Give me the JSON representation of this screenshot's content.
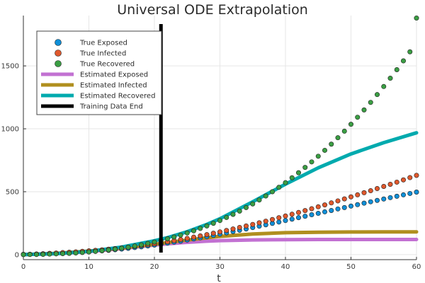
{
  "chart_data": {
    "type": "scatter",
    "title": "Universal ODE Extrapolation",
    "xlabel": "t",
    "ylabel": "",
    "xlim": [
      0,
      60
    ],
    "ylim": [
      -40,
      1900
    ],
    "xticks": [
      0,
      10,
      20,
      30,
      40,
      50,
      60
    ],
    "yticks": [
      0,
      500,
      1000,
      1500
    ],
    "grid": true,
    "legend_position": "top-left",
    "colors": {
      "true_exposed": "#0f8fd8",
      "true_infected": "#e0582c",
      "true_recovered": "#3a9e43",
      "est_exposed": "#c271d2",
      "est_infected": "#b08f1f",
      "est_recovered": "#00aaae",
      "training_end": "#000000"
    },
    "training_data_end": 21,
    "scatter_x_start": 0,
    "scatter_x_end": 60,
    "scatter_x_step": 1,
    "series": [
      {
        "name": "True Exposed",
        "kind": "scatter",
        "color_key": "true_exposed",
        "values": [
          1,
          2,
          3,
          5,
          7,
          9,
          11,
          13,
          16,
          19,
          22,
          26,
          30,
          34,
          39,
          44,
          50,
          56,
          62,
          69,
          76,
          83,
          91,
          99,
          107,
          116,
          125,
          134,
          143,
          153,
          163,
          173,
          183,
          194,
          204,
          215,
          226,
          237,
          248,
          259,
          271,
          282,
          294,
          305,
          317,
          328,
          340,
          351,
          363,
          374,
          386,
          397,
          409,
          420,
          431,
          442,
          453,
          464,
          475,
          486,
          497
        ]
      },
      {
        "name": "True Infected",
        "kind": "scatter",
        "color_key": "true_infected",
        "values": [
          2,
          3,
          5,
          7,
          10,
          13,
          16,
          19,
          22,
          26,
          30,
          34,
          38,
          43,
          48,
          53,
          59,
          65,
          72,
          79,
          86,
          94,
          102,
          111,
          120,
          129,
          139,
          149,
          159,
          170,
          181,
          192,
          204,
          216,
          228,
          240,
          253,
          266,
          279,
          293,
          307,
          321,
          335,
          350,
          365,
          380,
          395,
          411,
          427,
          443,
          459,
          475,
          492,
          508,
          525,
          542,
          559,
          576,
          594,
          612,
          630
        ]
      },
      {
        "name": "True Recovered",
        "kind": "scatter",
        "color_key": "true_recovered",
        "values": [
          0,
          1,
          1,
          2,
          4,
          6,
          8,
          10,
          13,
          17,
          21,
          26,
          31,
          37,
          44,
          51,
          59,
          68,
          78,
          89,
          100,
          113,
          126,
          140,
          155,
          172,
          189,
          208,
          228,
          249,
          271,
          295,
          320,
          346,
          374,
          403,
          434,
          466,
          500,
          535,
          572,
          611,
          651,
          693,
          737,
          782,
          829,
          878,
          929,
          981,
          1036,
          1092,
          1150,
          1210,
          1272,
          1336,
          1402,
          1470,
          1540,
          1612,
          1880
        ]
      },
      {
        "name": "Estimated Exposed",
        "kind": "line",
        "color_key": "est_exposed",
        "x": [
          0,
          5,
          10,
          15,
          20,
          22,
          25,
          28,
          30,
          35,
          40,
          45,
          50,
          55,
          60
        ],
        "values": [
          0,
          8,
          24,
          48,
          76,
          86,
          98,
          107,
          111,
          117,
          119,
          120,
          120,
          120,
          120
        ]
      },
      {
        "name": "Estimated Infected",
        "kind": "line",
        "color_key": "est_infected",
        "x": [
          0,
          5,
          10,
          15,
          20,
          22,
          25,
          28,
          30,
          35,
          40,
          45,
          50,
          55,
          60
        ],
        "values": [
          0,
          10,
          28,
          52,
          82,
          96,
          116,
          134,
          145,
          164,
          174,
          178,
          180,
          181,
          181
        ]
      },
      {
        "name": "Estimated Recovered",
        "kind": "line",
        "color_key": "est_recovered",
        "x": [
          0,
          5,
          10,
          15,
          20,
          22,
          25,
          28,
          30,
          35,
          40,
          45,
          50,
          55,
          60
        ],
        "values": [
          0,
          8,
          26,
          60,
          110,
          135,
          182,
          240,
          285,
          420,
          560,
          690,
          800,
          890,
          968
        ]
      },
      {
        "name": "Training Data End",
        "kind": "vline",
        "color_key": "training_end",
        "values": [
          21
        ]
      }
    ]
  }
}
